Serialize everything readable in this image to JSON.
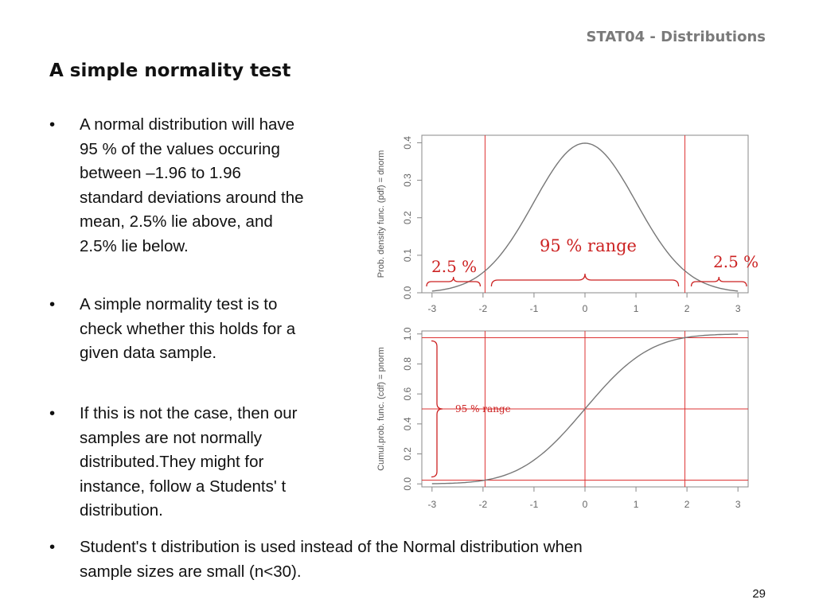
{
  "header": {
    "course_tag": "STAT04 - Distributions"
  },
  "slide": {
    "title": "A simple normality test",
    "bullet_marker": "•",
    "bullets": [
      "A normal distribution will have\n95 % of the values occuring\nbetween –1.96 to 1.96\nstandard deviations around the\nmean, 2.5% lie above, and\n2.5% lie below.",
      "A simple normality test is to\ncheck whether this holds for a\ngiven data sample.",
      "If this is not the case, then our\nsamples are not normally\ndistributed.They might for\ninstance, follow a Students' t\ndistribution.",
      "Student's t distribution is used instead of the Normal distribution when\nsample sizes are small (n<30)."
    ],
    "page_number": "29"
  },
  "chart_data": [
    {
      "type": "line",
      "function": "standard normal probability density",
      "ylabel": "Prob. density func. (pdf) = dnorm",
      "xlim": [
        -3.2,
        3.2
      ],
      "ylim": [
        0,
        0.42
      ],
      "x_ticks": [
        "-3",
        "-2",
        "-1",
        "0",
        "1",
        "2",
        "3"
      ],
      "y_ticks": [
        "0.0",
        "0.1",
        "0.2",
        "0.3",
        "0.4"
      ],
      "x": [
        -3.0,
        -2.5,
        -2.0,
        -1.5,
        -1.0,
        -0.5,
        0.0,
        0.5,
        1.0,
        1.5,
        2.0,
        2.5,
        3.0
      ],
      "y": [
        0.0044,
        0.0175,
        0.054,
        0.1295,
        0.242,
        0.3521,
        0.3989,
        0.3521,
        0.242,
        0.1295,
        0.054,
        0.0175,
        0.0044
      ],
      "vlines": [
        -1.96,
        1.96
      ],
      "annotations": [
        {
          "text": "2.5 %",
          "span": [
            -3.2,
            -1.96
          ]
        },
        {
          "text": "95 % range",
          "span": [
            -1.96,
            1.96
          ]
        },
        {
          "text": "2.5 %",
          "span": [
            1.96,
            3.2
          ]
        }
      ],
      "colors": {
        "curve": "#777777",
        "reference_lines": "#dd3333",
        "annotation": "#cc2222"
      }
    },
    {
      "type": "line",
      "function": "standard normal cumulative distribution",
      "ylabel": "Cumul.prob. func. (cdf) = pnorm",
      "xlim": [
        -3.2,
        3.2
      ],
      "ylim": [
        -0.02,
        1.02
      ],
      "x_ticks": [
        "-3",
        "-2",
        "-1",
        "0",
        "1",
        "2",
        "3"
      ],
      "y_ticks": [
        "0.0",
        "0.2",
        "0.4",
        "0.6",
        "0.8",
        "1.0"
      ],
      "x": [
        -3.0,
        -2.5,
        -2.0,
        -1.5,
        -1.0,
        -0.5,
        0.0,
        0.5,
        1.0,
        1.5,
        2.0,
        2.5,
        3.0
      ],
      "y": [
        0.0013,
        0.0062,
        0.0228,
        0.0668,
        0.1587,
        0.3085,
        0.5,
        0.6915,
        0.8413,
        0.9332,
        0.9772,
        0.9938,
        0.9987
      ],
      "vlines": [
        -1.96,
        0,
        1.96
      ],
      "hlines": [
        0.025,
        0.5,
        0.975
      ],
      "annotations": [
        {
          "text": "95 % range",
          "span": [
            0.025,
            0.975
          ]
        }
      ],
      "colors": {
        "curve": "#777777",
        "reference_lines": "#dd3333",
        "annotation": "#cc2222"
      }
    }
  ]
}
